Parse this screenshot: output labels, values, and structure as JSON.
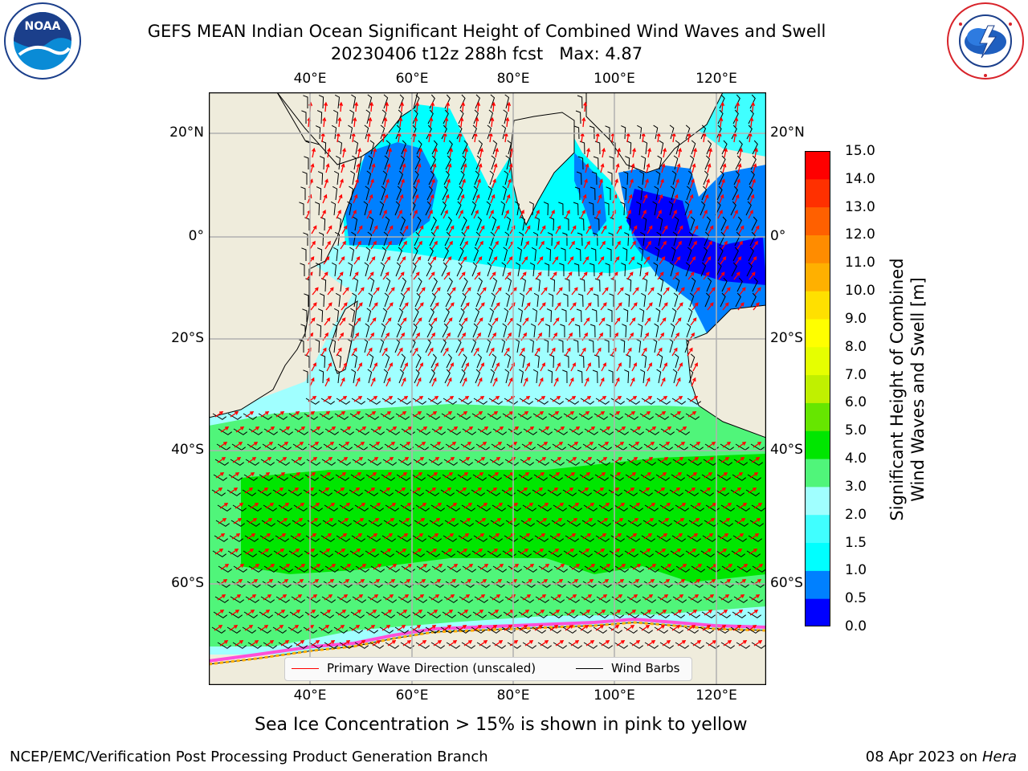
{
  "header": {
    "title_line1": "GEFS MEAN Indian Ocean Significant Height of Combined Wind Waves and Swell",
    "title_line2": "20230406 t12z 288h fcst   Max: 4.87",
    "noaa_logo": "NOAA",
    "noaa_ring_text": "NATIONAL OCEANIC AND ATMOSPHERIC ADMINISTRATION · U.S. DEPARTMENT OF COMMERCE",
    "nws_ring_text": "NATIONAL WEATHER SERVICE"
  },
  "map": {
    "lon_ticks": [
      "40°E",
      "60°E",
      "80°E",
      "100°E",
      "120°E"
    ],
    "lat_ticks_left": [
      "20°N",
      "0°",
      "20°S",
      "40°S",
      "60°S"
    ],
    "lat_ticks_right": [
      "20°N",
      "0°",
      "20°S",
      "40°S",
      "60°S"
    ],
    "grid": true,
    "colors": {
      "land": "#efecdc",
      "ice": "#ff4fd8",
      "wave_arrow": "#ff0000",
      "wind_barb": "#000000"
    }
  },
  "legend": {
    "wave_label": "Primary Wave Direction (unscaled)",
    "barb_label": "Wind Barbs",
    "placement": "lower-center"
  },
  "colorbar": {
    "label_line1": "Significant Height of Combined",
    "label_line2": "Wind Waves and Swell [m]",
    "ticks": [
      "0.0",
      "0.5",
      "1.0",
      "1.5",
      "2.0",
      "3.0",
      "4.0",
      "5.0",
      "6.0",
      "7.0",
      "8.0",
      "9.0",
      "10.0",
      "11.0",
      "12.0",
      "13.0",
      "14.0",
      "15.0"
    ],
    "colors": [
      "#0000ff",
      "#0080ff",
      "#00ffff",
      "#40ffff",
      "#a0ffff",
      "#50f57a",
      "#00e600",
      "#66e600",
      "#c0f000",
      "#e6ff00",
      "#ffff00",
      "#ffe000",
      "#ffb000",
      "#ff8c00",
      "#ff6000",
      "#ff3000",
      "#ff0000"
    ]
  },
  "caption": "Sea Ice Concentration > 15% is shown in pink to yellow",
  "footer": {
    "left": "NCEP/EMC/Verification Post Processing Product Generation Branch",
    "right_date": "08 Apr 2023 on ",
    "right_host": "Hera"
  }
}
